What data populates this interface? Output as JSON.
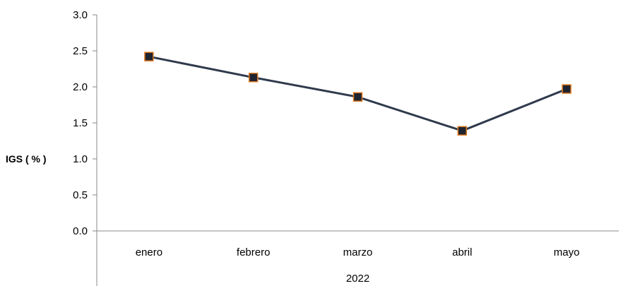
{
  "chart_data": {
    "type": "line",
    "categories": [
      "enero",
      "febrero",
      "marzo",
      "abril",
      "mayo"
    ],
    "group_label": "2022",
    "series": [
      {
        "values": [
          2.42,
          2.13,
          1.86,
          1.39,
          1.97
        ]
      }
    ],
    "ylabel": "IGS ( % )",
    "xlabel": "",
    "ylim": [
      0,
      3
    ],
    "yticks": [
      "0.0",
      "0.5",
      "1.0",
      "1.5",
      "2.0",
      "2.5",
      "3.0"
    ],
    "grid": false,
    "legend": "none",
    "colors": {
      "line": "#2f3a4c",
      "marker_fill": "#1f2430",
      "marker_edge": "#e07b22",
      "axis": "#888888"
    }
  }
}
